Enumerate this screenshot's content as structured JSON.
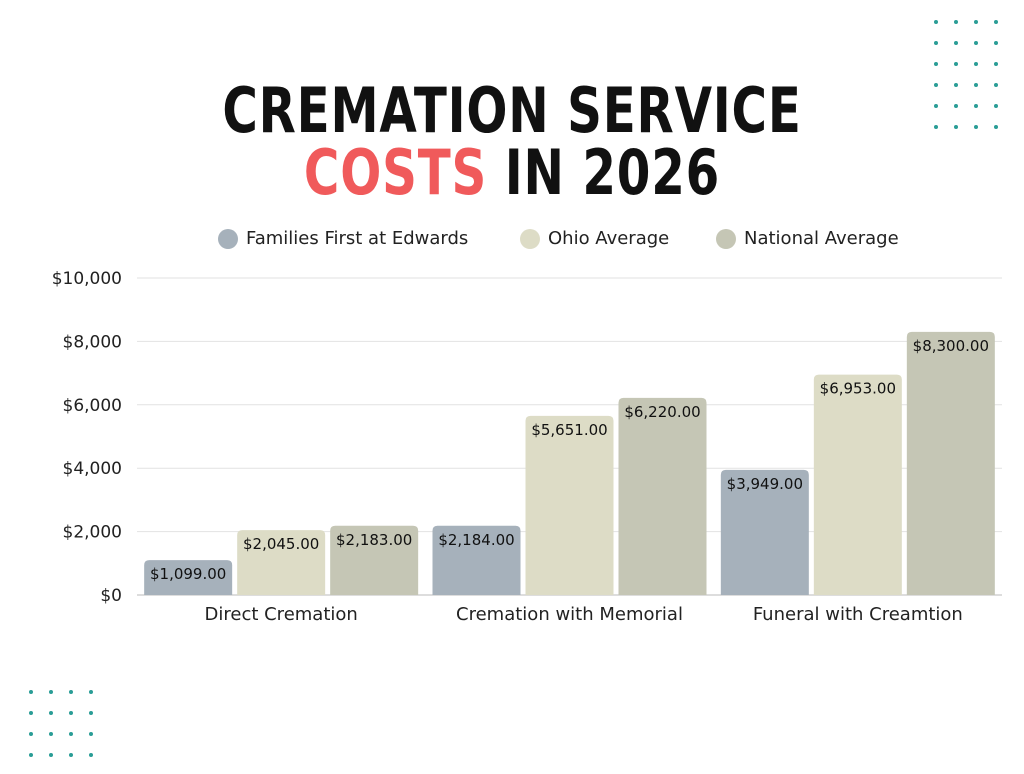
{
  "title_line1": "CREMATION SERVICE",
  "title_line2_accent": "COSTS",
  "title_line2_rest": " IN 2026",
  "colors": {
    "accent": "#f05a5b",
    "dots": "#2a9d96",
    "series": [
      "#a6b1bb",
      "#dddcc6",
      "#c5c6b5"
    ]
  },
  "chart_data": {
    "type": "bar",
    "categories": [
      "Direct Cremation",
      "Cremation with Memorial",
      "Funeral with Creamtion"
    ],
    "series": [
      {
        "name": "Families First at Edwards",
        "values": [
          1099,
          2184,
          3949
        ],
        "labels": [
          "$1,099.00",
          "$2,184.00",
          "$3,949.00"
        ]
      },
      {
        "name": "Ohio Average",
        "values": [
          2045,
          5651,
          6953
        ],
        "labels": [
          "$2,045.00",
          "$5,651.00",
          "$6,953.00"
        ]
      },
      {
        "name": "National Average",
        "values": [
          2183,
          6220,
          8300
        ],
        "labels": [
          "$2,183.00",
          "$6,220.00",
          "$8,300.00"
        ]
      }
    ],
    "yticks": [
      0,
      2000,
      4000,
      6000,
      8000,
      10000
    ],
    "ytick_labels": [
      "$0",
      "$2,000",
      "$4,000",
      "$6,000",
      "$8,000",
      "$10,000"
    ],
    "ylim": [
      0,
      10000
    ],
    "grid": true,
    "legend_position": "top"
  }
}
